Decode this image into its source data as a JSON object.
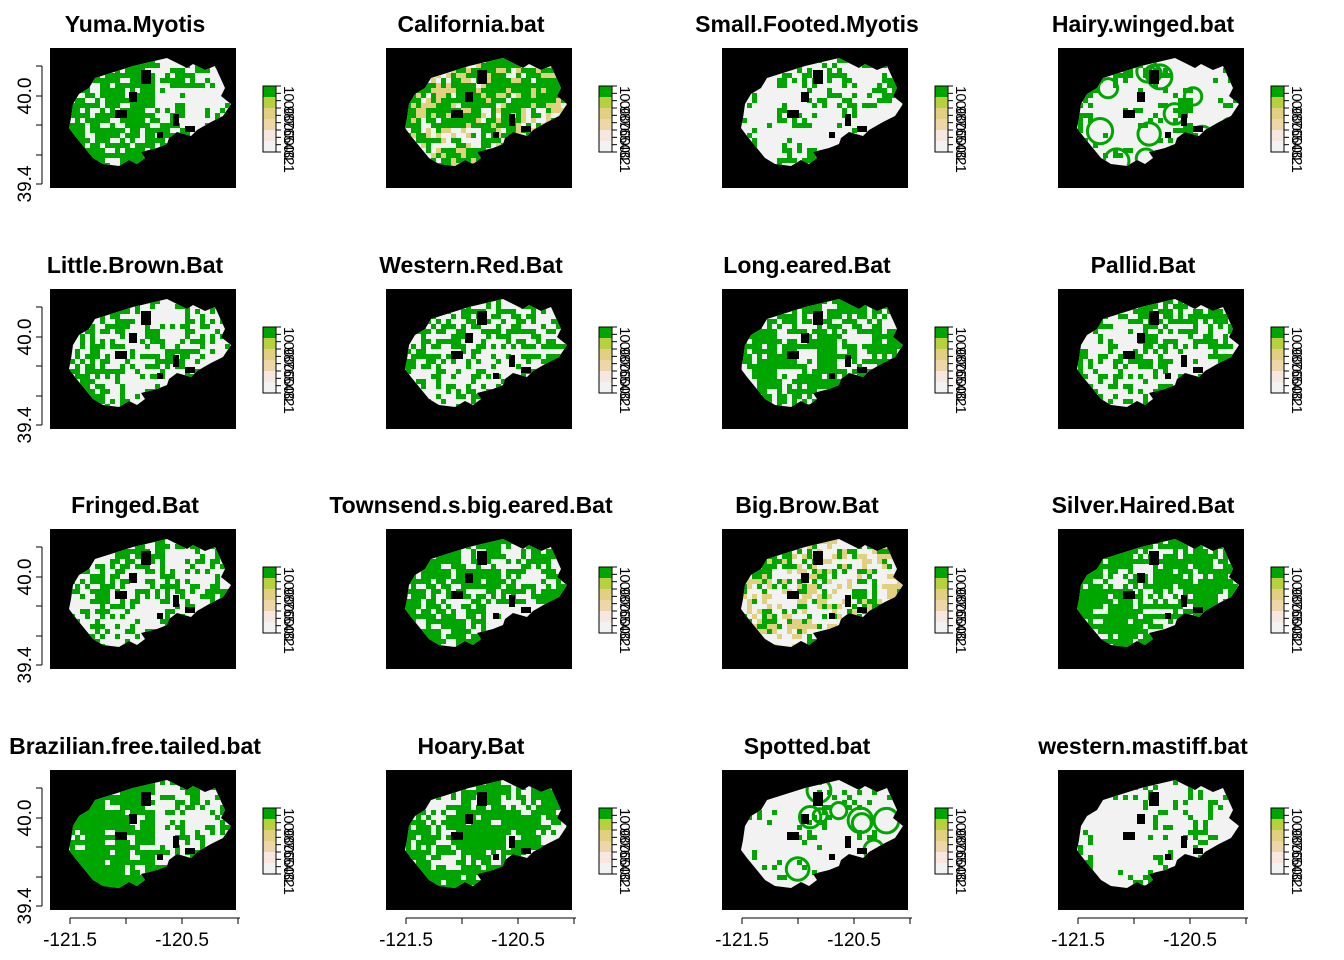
{
  "chart_data": {
    "type": "heatmap",
    "panels": [
      {
        "title": "Yuma.Myotis",
        "pattern": "solid-west"
      },
      {
        "title": "California.bat",
        "pattern": "speckled-yellow"
      },
      {
        "title": "Small.Footed.Myotis",
        "pattern": "sparse"
      },
      {
        "title": "Hairy.winged.bat",
        "pattern": "rings"
      },
      {
        "title": "Little.Brown.Bat",
        "pattern": "patchy"
      },
      {
        "title": "Western.Red.Bat",
        "pattern": "speckled"
      },
      {
        "title": "Long.eared.Bat",
        "pattern": "dense"
      },
      {
        "title": "Pallid.Bat",
        "pattern": "patchy"
      },
      {
        "title": "Fringed.Bat",
        "pattern": "patchy"
      },
      {
        "title": "Townsend.s.big.eared.Bat",
        "pattern": "dense-south-white"
      },
      {
        "title": "Big.Brow.Bat",
        "pattern": "speckled-yellow-light"
      },
      {
        "title": "Silver.Haired.Bat",
        "pattern": "dense"
      },
      {
        "title": "Brazilian.free.tailed.bat",
        "pattern": "solid-west"
      },
      {
        "title": "Hoary.Bat",
        "pattern": "speckled-dense"
      },
      {
        "title": "Spotted.bat",
        "pattern": "rings-sparse"
      },
      {
        "title": "western.mastiff.bat",
        "pattern": "very-sparse"
      }
    ],
    "x_ticks": [
      "-121.5",
      "-120.5"
    ],
    "y_ticks": [
      "40.0",
      "39.4"
    ],
    "legend_ticks": [
      "1",
      "0.9",
      "0.8",
      "0.7",
      "0.6",
      "0.5",
      "0.4",
      "0.3",
      "0.2",
      "0.1"
    ],
    "colors": {
      "background": "#000000",
      "low": "#f2f2f2",
      "mid": "#e0d080",
      "high": "#00a600"
    }
  }
}
